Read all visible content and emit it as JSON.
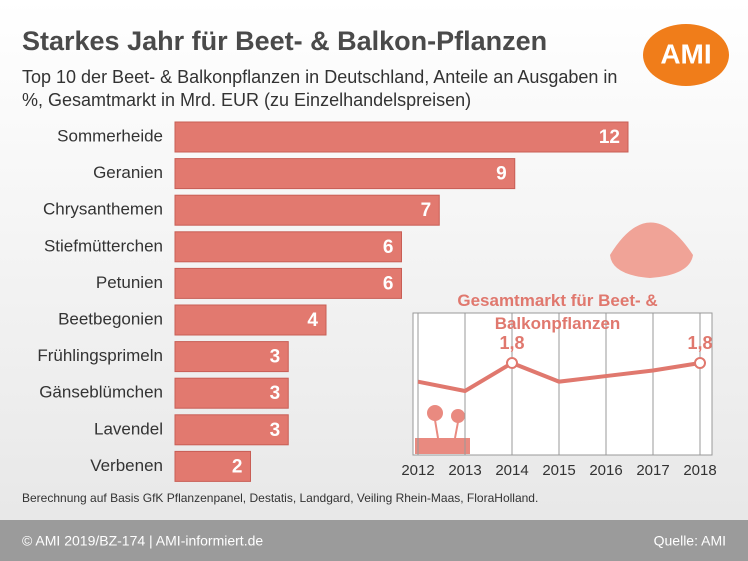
{
  "title": "Starkes Jahr für Beet- & Balkon-Pflanzen",
  "subtitle": "Top 10 der Beet- & Balkonpflanzen in Deutschland, Anteile an Ausgaben in %, Gesamtmarkt in Mrd. EUR (zu Einzelhandelspreisen)",
  "logo": "AMI",
  "footnote": "Berechnung auf Basis GfK Pflanzenpanel, Destatis, Landgard, Veiling Rhein-Maas, FloraHolland.",
  "footer": {
    "left": "© AMI 2019/BZ-174 | AMI-informiert.de",
    "right": "Quelle: AMI"
  },
  "chart_data": [
    {
      "type": "hbar",
      "color": "#e2796f",
      "categories": [
        "Sommerheide",
        "Geranien",
        "Chrysanthemen",
        "Stiefmütterchen",
        "Petunien",
        "Beetbegonien",
        "Frühlingsprimeln",
        "Gänseblümchen",
        "Lavendel",
        "Verbenen"
      ],
      "values": [
        12,
        9,
        7,
        6,
        6,
        4,
        3,
        3,
        3,
        2
      ]
    },
    {
      "type": "line",
      "title": "Gesamtmarkt für Beet- & Balkonpflanzen",
      "color": "#e0786e",
      "x": [
        2012,
        2013,
        2014,
        2015,
        2016,
        2017,
        2018
      ],
      "values": [
        1.7,
        1.65,
        1.8,
        1.7,
        1.73,
        1.76,
        1.8
      ],
      "value_labels": [
        null,
        null,
        "1,8",
        null,
        null,
        null,
        "1,8"
      ],
      "grid": true
    }
  ]
}
